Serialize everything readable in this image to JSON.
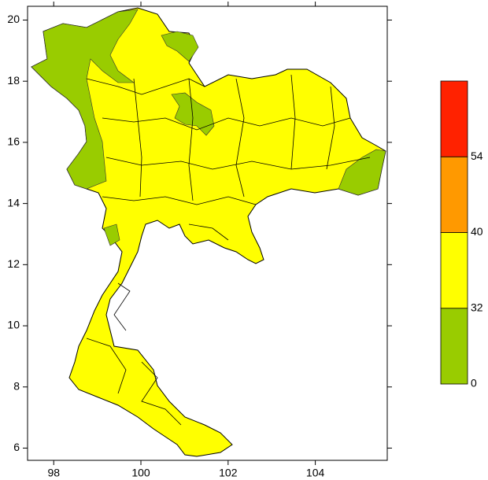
{
  "map": {
    "xlim": [
      97.4,
      105.65
    ],
    "ylim": [
      5.6,
      20.45
    ],
    "xticks": [
      98,
      100,
      102,
      104
    ],
    "yticks": [
      6,
      8,
      10,
      12,
      14,
      16,
      18,
      20
    ],
    "colorbar": {
      "levels": [
        0,
        32,
        40,
        54
      ],
      "colors": [
        "#99cc00",
        "#ffff00",
        "#ff9900",
        "#ff2200"
      ]
    }
  }
}
